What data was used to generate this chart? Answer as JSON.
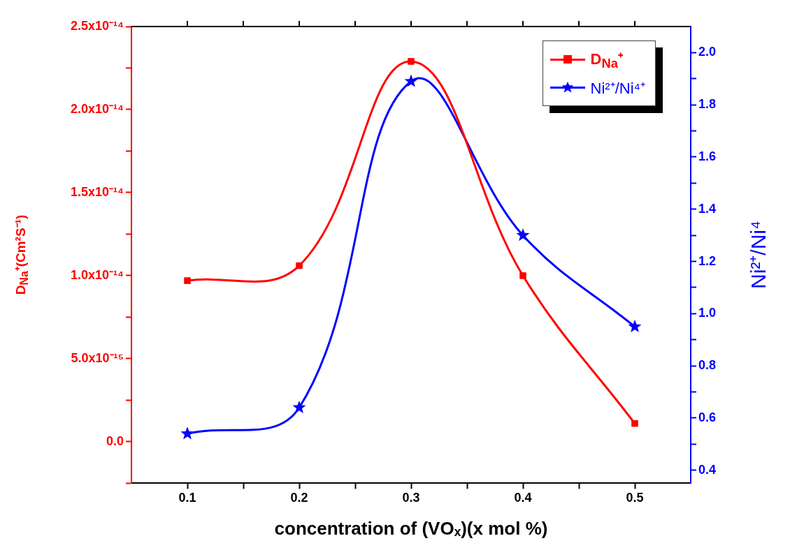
{
  "chart_data": {
    "type": "line",
    "xlabel": "concentration of (VOₓ)(x mol %)",
    "ylabel": "D$_{Na}$⁺(Cm²S⁻¹)",
    "y2label": "Ni²⁺/Ni⁴",
    "x": [
      0.1,
      0.2,
      0.3,
      0.4,
      0.5
    ],
    "series": [
      {
        "name": "D$_{Na}$⁺",
        "color": "#ff0000",
        "marker": "square",
        "values": [
          9.7e-15,
          1.06e-14,
          2.29e-14,
          1e-14,
          1.1e-15
        ]
      },
      {
        "name": "Ni²⁺/Ni⁴⁺",
        "color": "#0000ff",
        "marker": "star",
        "axis": "y2",
        "values": [
          0.54,
          0.64,
          1.89,
          1.3,
          0.95
        ]
      }
    ],
    "xlim": [
      0.05,
      0.55
    ],
    "xticks": [
      0.1,
      {
        "value": 0.15,
        "label": null
      },
      0.2,
      {
        "value": 0.25,
        "label": null
      },
      0.3,
      {
        "value": 0.35,
        "label": null
      },
      0.4,
      {
        "value": 0.45,
        "label": null
      },
      0.5
    ],
    "ylim": [
      -2.5e-15,
      2.5e-14
    ],
    "yticks": [
      {
        "value": -2.5e-15,
        "label": null
      },
      {
        "value": 0,
        "label": "0.0"
      },
      {
        "value": 2.5e-15,
        "label": null
      },
      {
        "value": 5e-15,
        "label": "5.0x10⁻¹⁵"
      },
      {
        "value": 7.5e-15,
        "label": null
      },
      {
        "value": 1e-14,
        "label": "1.0x10⁻¹⁴"
      },
      {
        "value": 1.25e-14,
        "label": null
      },
      {
        "value": 1.5e-14,
        "label": "1.5x10⁻¹⁴"
      },
      {
        "value": 1.75e-14,
        "label": null
      },
      {
        "value": 2e-14,
        "label": "2.0x10⁻¹⁴"
      },
      {
        "value": 2.25e-14,
        "label": null
      },
      {
        "value": 2.5e-14,
        "label": "2.5x10⁻¹⁴"
      }
    ],
    "y2lim": [
      0.35,
      2.1
    ],
    "y2ticks": [
      {
        "value": 0.4,
        "label": "0.4"
      },
      {
        "value": 0.5,
        "label": null
      },
      {
        "value": 0.6,
        "label": "0.6"
      },
      {
        "value": 0.7,
        "label": null
      },
      {
        "value": 0.8,
        "label": "0.8"
      },
      {
        "value": 0.9,
        "label": null
      },
      {
        "value": 1.0,
        "label": "1.0"
      },
      {
        "value": 1.1,
        "label": null
      },
      {
        "value": 1.2,
        "label": "1.2"
      },
      {
        "value": 1.3,
        "label": null
      },
      {
        "value": 1.4,
        "label": "1.4"
      },
      {
        "value": 1.5,
        "label": null
      },
      {
        "value": 1.6,
        "label": "1.6"
      },
      {
        "value": 1.7,
        "label": null
      },
      {
        "value": 1.8,
        "label": "1.8"
      },
      {
        "value": 1.9,
        "label": null
      },
      {
        "value": 2.0,
        "label": "2.0"
      }
    ],
    "grid": false,
    "legend": "top right",
    "line_style": "solid"
  }
}
